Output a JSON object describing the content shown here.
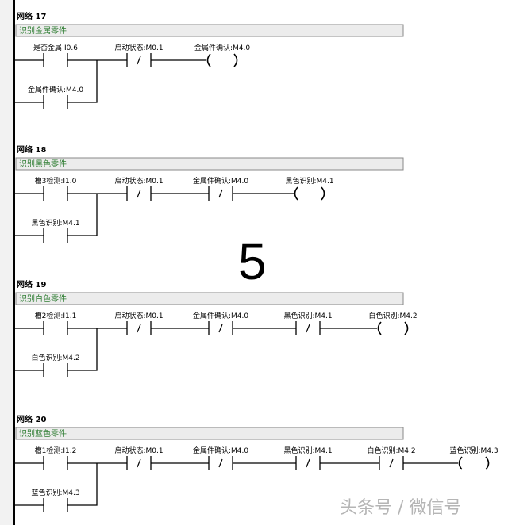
{
  "overlay_number": "5",
  "watermark": "头条号 / 微信号",
  "colors": {
    "comment_text": "#2e7d32",
    "comment_bg": "#ececec",
    "line": "#000000"
  },
  "networks": [
    {
      "title": "网络 17",
      "comment": "识别金属零件",
      "contacts": [
        {
          "label": "是否金属:I0.6",
          "type": "NO"
        },
        {
          "label": "启动状态:M0.1",
          "type": "NC"
        }
      ],
      "branch": {
        "label": "金属件确认:M4.0",
        "type": "NO"
      },
      "coil": "金属件确认:M4.0"
    },
    {
      "title": "网络 18",
      "comment": "识别黑色零件",
      "contacts": [
        {
          "label": "槽3检测:I1.0",
          "type": "NO"
        },
        {
          "label": "启动状态:M0.1",
          "type": "NC"
        },
        {
          "label": "金属件确认:M4.0",
          "type": "NC"
        }
      ],
      "branch": {
        "label": "黑色识别:M4.1",
        "type": "NO"
      },
      "coil": "黑色识别:M4.1"
    },
    {
      "title": "网络 19",
      "comment": "识别白色零件",
      "contacts": [
        {
          "label": "槽2检测:I1.1",
          "type": "NO"
        },
        {
          "label": "启动状态:M0.1",
          "type": "NC"
        },
        {
          "label": "金属件确认:M4.0",
          "type": "NC"
        },
        {
          "label": "黑色识别:M4.1",
          "type": "NC"
        }
      ],
      "branch": {
        "label": "白色识别:M4.2",
        "type": "NO"
      },
      "coil": "白色识别:M4.2"
    },
    {
      "title": "网络 20",
      "comment": "识别蓝色零件",
      "contacts": [
        {
          "label": "槽1检测:I1.2",
          "type": "NO"
        },
        {
          "label": "启动状态:M0.1",
          "type": "NC"
        },
        {
          "label": "金属件确认:M4.0",
          "type": "NC"
        },
        {
          "label": "黑色识别:M4.1",
          "type": "NC"
        },
        {
          "label": "白色识别:M4.2",
          "type": "NC"
        }
      ],
      "branch": {
        "label": "蓝色识别:M4.3",
        "type": "NO"
      },
      "coil": "蓝色识别:M4.3"
    }
  ]
}
